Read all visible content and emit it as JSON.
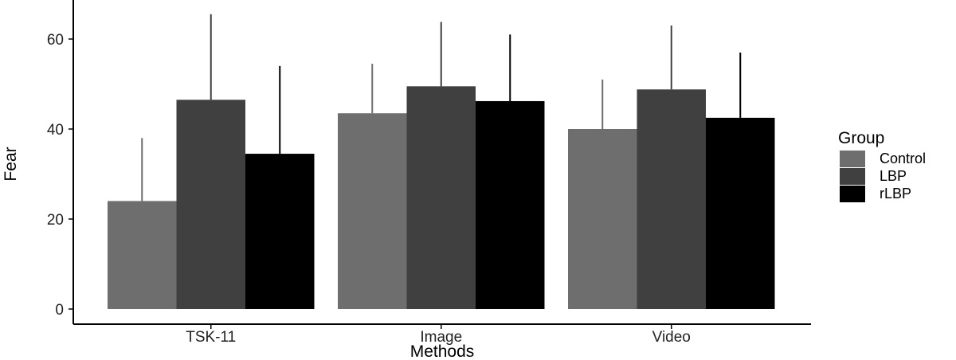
{
  "chart_data": {
    "type": "bar",
    "xlabel": "Methods",
    "ylabel": "Fear",
    "ylim": [
      0,
      68
    ],
    "yticks": [
      0,
      20,
      40,
      60
    ],
    "categories": [
      "TSK-11",
      "Image",
      "Video"
    ],
    "series": [
      {
        "name": "Control",
        "color": "#6e6e6e",
        "values": [
          24,
          43.5,
          40
        ],
        "error_upper": [
          38,
          54.5,
          51
        ]
      },
      {
        "name": "LBP",
        "color": "#404040",
        "values": [
          46.5,
          49.5,
          48.8
        ],
        "error_upper": [
          65.5,
          63.8,
          63
        ]
      },
      {
        "name": "rLBP",
        "color": "#000000",
        "values": [
          34.5,
          46.2,
          42.5
        ],
        "error_upper": [
          54,
          61,
          57
        ]
      }
    ],
    "legend": {
      "title": "Group",
      "position": "right"
    },
    "grid": false
  }
}
